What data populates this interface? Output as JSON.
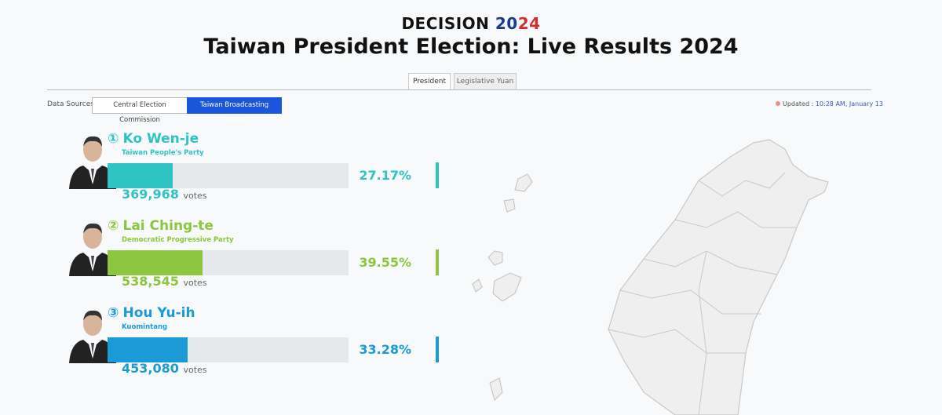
{
  "header": {
    "brand": "DECISION",
    "brand_year": "2024",
    "title": "Taiwan President Election: Live Results 2024"
  },
  "tabs": [
    "President",
    "Legislative Yuan"
  ],
  "sources": {
    "label": "Data Sources:",
    "options": [
      "Central Election Commission",
      "Taiwan Broadcasting System"
    ]
  },
  "updated": {
    "label": "Updated :",
    "time": "10:28 AM, January 13"
  },
  "votes_word": "votes",
  "candidates": [
    {
      "number": "①",
      "name": "Ko Wen-je",
      "party": "Taiwan People's Party",
      "color": "#2ec4c4",
      "percent": 27.17,
      "percent_label": "27.17%",
      "votes": 369968,
      "votes_label": "369,968"
    },
    {
      "number": "②",
      "name": "Lai Ching-te",
      "party": "Democratic Progressive Party",
      "color": "#8cc63f",
      "percent": 39.55,
      "percent_label": "39.55%",
      "votes": 538545,
      "votes_label": "538,545"
    },
    {
      "number": "③",
      "name": "Hou Yu-ih",
      "party": "Kuomintang",
      "color": "#1a9ad6",
      "percent": 33.28,
      "percent_label": "33.28%",
      "votes": 453080,
      "votes_label": "453,080"
    }
  ]
}
